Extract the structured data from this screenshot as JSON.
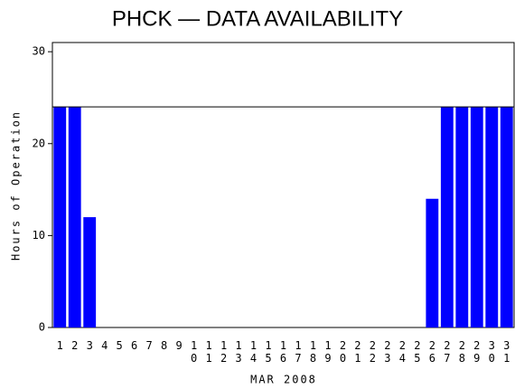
{
  "chart_data": {
    "type": "bar",
    "title": "PHCK — DATA AVAILABILITY",
    "x_label": "MAR 2008",
    "y_label": "Hours of Operation",
    "categories": [
      "1",
      "2",
      "3",
      "4",
      "5",
      "6",
      "7",
      "8",
      "9",
      "10",
      "11",
      "12",
      "13",
      "14",
      "15",
      "16",
      "17",
      "18",
      "19",
      "20",
      "21",
      "22",
      "23",
      "24",
      "25",
      "26",
      "27",
      "28",
      "29",
      "30",
      "31"
    ],
    "values": [
      24,
      24,
      12,
      0,
      0,
      0,
      0,
      0,
      0,
      0,
      0,
      0,
      0,
      0,
      0,
      0,
      0,
      0,
      0,
      0,
      0,
      0,
      0,
      0,
      0,
      14,
      24,
      24,
      24,
      24,
      24
    ],
    "color": "#0000ff",
    "ylim": [
      0,
      31
    ],
    "yticks": [
      0,
      10,
      20,
      30
    ],
    "reference_line": 24
  }
}
